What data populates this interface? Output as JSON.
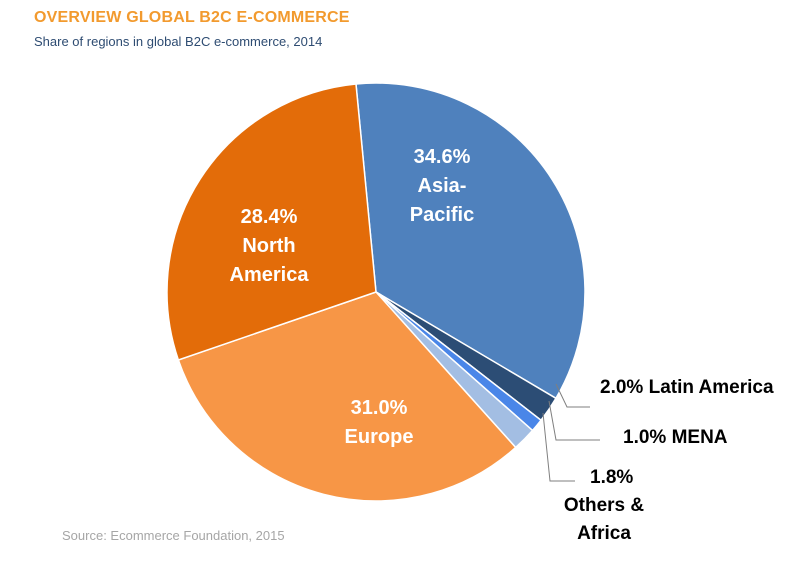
{
  "title": "OVERVIEW GLOBAL B2C E-COMMERCE",
  "subtitle": "Share of regions in global B2C e-commerce, 2014",
  "source": "Source: Ecommerce Foundation, 2015",
  "colors": {
    "title": "#F29A2E",
    "subtitle": "#2E4C72",
    "source": "#A6A6A6"
  },
  "chart_data": {
    "type": "pie",
    "unit": "%",
    "slices": [
      {
        "label": "Asia-Pacific",
        "value": 34.6,
        "value_text": "34.6%",
        "label_lines": [
          "Asia-",
          "Pacific"
        ],
        "color": "#4F81BD",
        "label_position": "inside"
      },
      {
        "label": "Latin America",
        "value": 2.0,
        "value_text": "2.0%",
        "label_lines": [
          "Latin America"
        ],
        "color": "#2C4D75",
        "label_position": "outside"
      },
      {
        "label": "MENA",
        "value": 1.0,
        "value_text": "1.0%",
        "label_lines": [
          "MENA"
        ],
        "color": "#4A86E8",
        "label_position": "outside"
      },
      {
        "label": "Others & Africa",
        "value": 1.8,
        "value_text": "1.8%",
        "label_lines": [
          "Others &",
          "Africa"
        ],
        "color": "#A3BEE3",
        "label_position": "outside"
      },
      {
        "label": "Europe",
        "value": 31.0,
        "value_text": "31.0%",
        "label_lines": [
          "Europe"
        ],
        "color": "#F79646",
        "label_position": "inside"
      },
      {
        "label": "North America",
        "value": 28.4,
        "value_text": "28.4%",
        "label_lines": [
          "North",
          "America"
        ],
        "color": "#E36C09",
        "label_position": "inside"
      }
    ]
  }
}
